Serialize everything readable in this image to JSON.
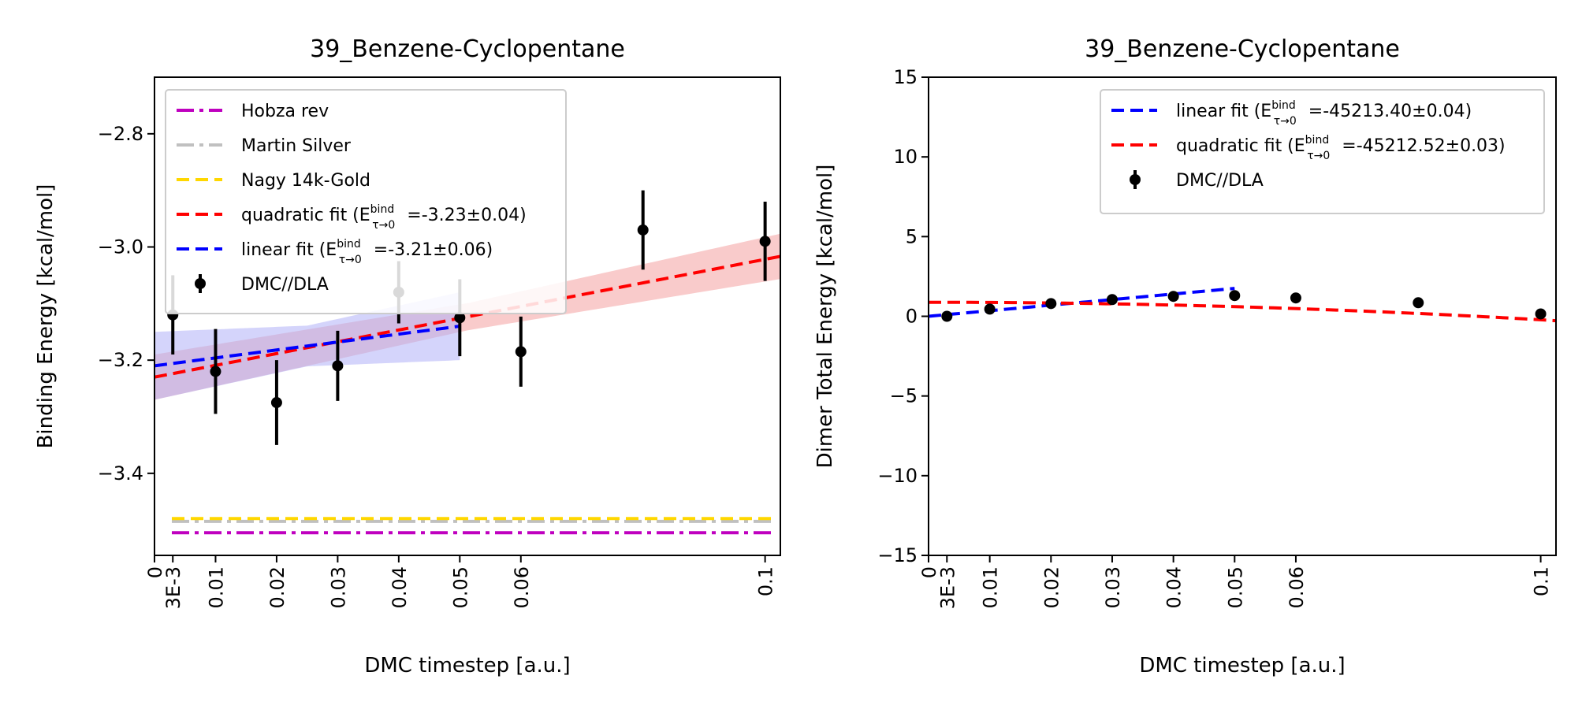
{
  "chart_data": [
    {
      "type": "scatter",
      "title": "39_Benzene-Cyclopentane",
      "xlabel": "DMC timestep [a.u.]",
      "ylabel": "Binding Energy [kcal/mol]",
      "xlim": [
        0,
        0.1025
      ],
      "ylim": [
        -3.545,
        -2.7
      ],
      "x_tick_values": [
        0,
        0.003,
        0.01,
        0.02,
        0.03,
        0.04,
        0.05,
        0.06,
        0.1
      ],
      "x_tick_labels": [
        "0",
        "3E-3",
        "0.01",
        "0.02",
        "0.03",
        "0.04",
        "0.05",
        "0.06",
        "0.1"
      ],
      "y_tick_values": [
        -3.4,
        -3.2,
        -3.0,
        -2.8
      ],
      "y_tick_labels": [
        "−3.4",
        "−3.2",
        "−3.0",
        "−2.8"
      ],
      "reference_lines": [
        {
          "name": "Hobza rev",
          "value": -3.505,
          "color": "#bf00bf",
          "style": "dashdot"
        },
        {
          "name": "Martin Silver",
          "value": -3.485,
          "color": "#c0c0c0",
          "style": "dashdot"
        },
        {
          "name": "Nagy 14k-Gold",
          "value": -3.48,
          "color": "#ffd700",
          "style": "dashed"
        }
      ],
      "fits": [
        {
          "name": "quadratic fit",
          "extrap_label": "E",
          "extrap_sup": "bind",
          "extrap_sub": "τ→0",
          "extrap_value": "=-3.23±0.04",
          "color": "#ff0000",
          "x_range": [
            0,
            0.1025
          ],
          "coeffs": [
            -3.23,
            2.082,
            0
          ],
          "band": 0.04,
          "band_color": "#f4a0a0"
        },
        {
          "name": "linear fit",
          "extrap_label": "E",
          "extrap_sup": "bind",
          "extrap_sub": "τ→0",
          "extrap_value": "=-3.21±0.06",
          "color": "#0000ff",
          "x_range": [
            0,
            0.05
          ],
          "coeffs": [
            -3.21,
            1.4
          ],
          "band": 0.06,
          "band_color": "#b0b0f8"
        }
      ],
      "points": {
        "name": "DMC//DLA",
        "color": "#000000",
        "x": [
          0.003,
          0.01,
          0.02,
          0.03,
          0.04,
          0.05,
          0.06,
          0.08,
          0.1
        ],
        "y": [
          -3.12,
          -3.22,
          -3.275,
          -3.21,
          -3.08,
          -3.125,
          -3.185,
          -2.97,
          -2.99
        ],
        "err": [
          0.07,
          0.075,
          0.075,
          0.062,
          0.055,
          0.068,
          0.062,
          0.07,
          0.07
        ]
      },
      "legend_location": "upper-left"
    },
    {
      "type": "scatter",
      "title": "39_Benzene-Cyclopentane",
      "xlabel": "DMC timestep [a.u.]",
      "ylabel": "Dimer Total Energy [kcal/mol]",
      "xlim": [
        0,
        0.1025
      ],
      "ylim": [
        -15,
        15
      ],
      "x_tick_values": [
        0,
        0.003,
        0.01,
        0.02,
        0.03,
        0.04,
        0.05,
        0.06,
        0.1
      ],
      "x_tick_labels": [
        "0",
        "3E-3",
        "0.01",
        "0.02",
        "0.03",
        "0.04",
        "0.05",
        "0.06",
        "0.1"
      ],
      "y_tick_values": [
        -15,
        -10,
        -5,
        0,
        5,
        10,
        15
      ],
      "y_tick_labels": [
        "−15",
        "−10",
        "−5",
        "0",
        "5",
        "10",
        "15"
      ],
      "reference_lines": [],
      "fits": [
        {
          "name": "linear fit",
          "extrap_label": "E",
          "extrap_sup": "bind",
          "extrap_sub": "τ→0",
          "extrap_value": "=-45213.40±0.04",
          "color": "#0000ff",
          "x_range": [
            0,
            0.05
          ],
          "coeffs": [
            0.0,
            35.0
          ],
          "band": 0,
          "band_color": ""
        },
        {
          "name": "quadratic fit",
          "extrap_label": "E",
          "extrap_sup": "bind",
          "extrap_sub": "τ→0",
          "extrap_value": "=-45212.52±0.03",
          "color": "#ff0000",
          "x_range": [
            0,
            0.1025
          ],
          "coeffs": [
            0.88,
            0.0,
            -110.0
          ],
          "band": 0,
          "band_color": ""
        }
      ],
      "points": {
        "name": "DMC//DLA",
        "color": "#000000",
        "x": [
          0.003,
          0.01,
          0.02,
          0.03,
          0.04,
          0.05,
          0.06,
          0.08,
          0.1
        ],
        "y": [
          0.0,
          0.45,
          0.8,
          1.05,
          1.25,
          1.3,
          1.15,
          0.85,
          0.15
        ],
        "err": [
          0.05,
          0.05,
          0.05,
          0.05,
          0.05,
          0.05,
          0.05,
          0.05,
          0.05
        ]
      },
      "legend_location": "upper-right"
    }
  ]
}
